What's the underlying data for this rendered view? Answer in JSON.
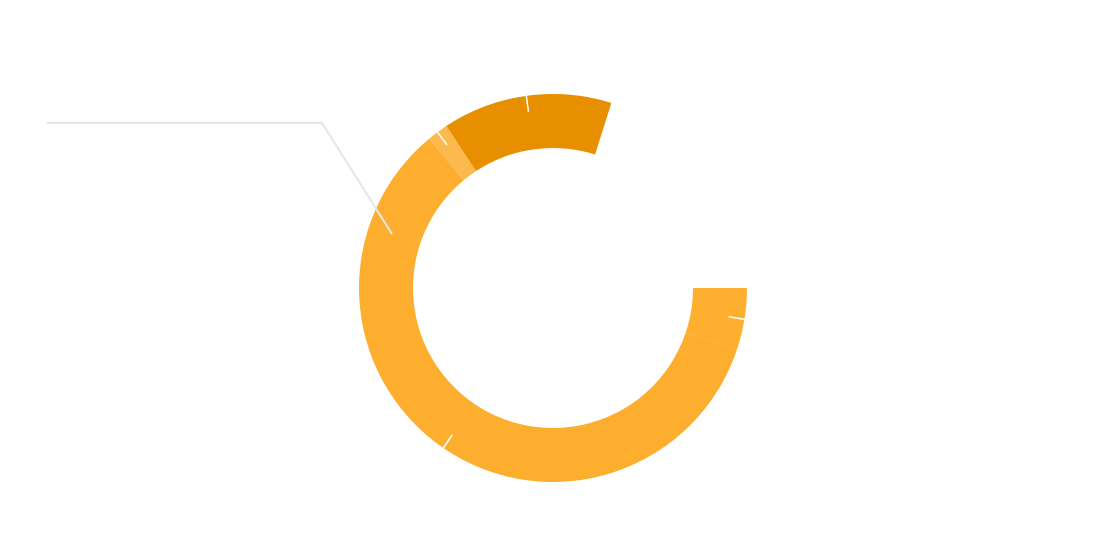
{
  "chart_data": {
    "type": "pie",
    "variant": "donut",
    "title": "",
    "legend": "none",
    "colors": {
      "background": "#ffffff",
      "leader": "#e6e6e6",
      "tick": "#ffffff"
    },
    "slices": [
      {
        "value": 6.47,
        "color": "#feaf2f"
      },
      {
        "value": 73.62,
        "color": "#feae2e"
      },
      {
        "value": 2.23,
        "color": "#fcb94e"
      },
      {
        "value": 17.68,
        "color": "#e88f00"
      }
    ],
    "gap_sector": [
      287.5,
      360
    ],
    "start_angle_deg": 0
  }
}
